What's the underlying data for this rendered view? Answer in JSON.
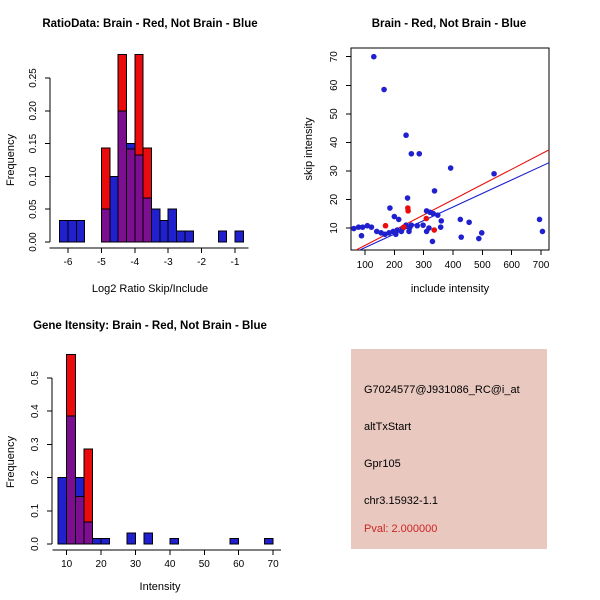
{
  "colors": {
    "red": "#ea0c0c",
    "blue": "#2020cf",
    "overlap_purple": "#7b0f8f",
    "panel_bg": "#e9c8c0",
    "pval_red": "#cd2424",
    "axis": "#000000"
  },
  "chart_data": [
    {
      "id": "ratio_hist",
      "type": "histogram-overlay",
      "title": "RatioData: Brain - Red, Not Brain - Blue",
      "xlabel": "Log2 Ratio Skip/Include",
      "ylabel": "Frequency",
      "xticks": [
        -6,
        -5,
        -4,
        -3,
        -2,
        -1
      ],
      "yticks": [
        0,
        0.05,
        0.1,
        0.15,
        0.2,
        0.25
      ],
      "ytick_labels": [
        "0.00",
        "0.05",
        "0.10",
        "0.15",
        "0.20",
        "0.25"
      ],
      "xlim": [
        -6.55,
        -0.6
      ],
      "ylim": [
        0,
        0.287
      ],
      "bin_width": 0.25,
      "legend_note": "Brain - red, Not Brain - blue, overlap - purple",
      "red_bins": [
        {
          "x": -5.0,
          "h": 0.143
        },
        {
          "x": -4.5,
          "h": 0.286
        },
        {
          "x": -4.25,
          "h": 0.142
        },
        {
          "x": -4.0,
          "h": 0.286
        },
        {
          "x": -3.75,
          "h": 0.143
        }
      ],
      "blue_bins": [
        {
          "x": -6.25,
          "h": 0.033
        },
        {
          "x": -6.0,
          "h": 0.033
        },
        {
          "x": -5.75,
          "h": 0.033
        },
        {
          "x": -5.0,
          "h": 0.05
        },
        {
          "x": -4.75,
          "h": 0.1
        },
        {
          "x": -4.5,
          "h": 0.2
        },
        {
          "x": -4.25,
          "h": 0.15
        },
        {
          "x": -4.0,
          "h": 0.133
        },
        {
          "x": -3.75,
          "h": 0.067
        },
        {
          "x": -3.5,
          "h": 0.05
        },
        {
          "x": -3.25,
          "h": 0.033
        },
        {
          "x": -3.0,
          "h": 0.05
        },
        {
          "x": -2.75,
          "h": 0.017
        },
        {
          "x": -2.5,
          "h": 0.017
        },
        {
          "x": -1.5,
          "h": 0.017
        },
        {
          "x": -1.0,
          "h": 0.017
        }
      ]
    },
    {
      "id": "intensity_scatter",
      "type": "scatter",
      "title": "Brain - Red, Not Brain - Blue",
      "xlabel": "include intensity",
      "ylabel": "skip intensity",
      "xticks": [
        100,
        200,
        300,
        400,
        500,
        600,
        700
      ],
      "yticks": [
        10,
        20,
        30,
        40,
        50,
        60,
        70
      ],
      "xlim": [
        52,
        727
      ],
      "ylim": [
        2.3,
        73.1
      ],
      "blue_points": [
        [
          130,
          70
        ],
        [
          165,
          58.5
        ],
        [
          240,
          42.5
        ],
        [
          258,
          36
        ],
        [
          285,
          36
        ],
        [
          392,
          31
        ],
        [
          540,
          29
        ],
        [
          337,
          23
        ],
        [
          245,
          20.5
        ],
        [
          185,
          17
        ],
        [
          310,
          16
        ],
        [
          322,
          15.5
        ],
        [
          333,
          15
        ],
        [
          348,
          14.5
        ],
        [
          200,
          14
        ],
        [
          215,
          13
        ],
        [
          360,
          12.5
        ],
        [
          425,
          13
        ],
        [
          455,
          12
        ],
        [
          695,
          13
        ],
        [
          240,
          11
        ],
        [
          258,
          11
        ],
        [
          278,
          10.8
        ],
        [
          298,
          11
        ],
        [
          318,
          10
        ],
        [
          228,
          9.8
        ],
        [
          252,
          10
        ],
        [
          62,
          9.8
        ],
        [
          78,
          10.3
        ],
        [
          92,
          10.3
        ],
        [
          108,
          10.8
        ],
        [
          122,
          10.3
        ],
        [
          88,
          7.3
        ],
        [
          140,
          8.8
        ],
        [
          155,
          8.3
        ],
        [
          168,
          7.8
        ],
        [
          182,
          8.3
        ],
        [
          196,
          8.8
        ],
        [
          210,
          9.3
        ],
        [
          224,
          8.8
        ],
        [
          250,
          8.8
        ],
        [
          310,
          8.8
        ],
        [
          358,
          10.3
        ],
        [
          428,
          6.8
        ],
        [
          488,
          6.3
        ],
        [
          498,
          8.3
        ],
        [
          705,
          8.8
        ],
        [
          330,
          5.3
        ],
        [
          205,
          7.8
        ]
      ],
      "red_points": [
        [
          246,
          17
        ],
        [
          247,
          16
        ],
        [
          170,
          10.8
        ],
        [
          232,
          10.3
        ],
        [
          309,
          13.3
        ],
        [
          336,
          9.3
        ]
      ],
      "lines": [
        {
          "color_key": "red",
          "x1": 55,
          "y1": 1.5,
          "x2": 730,
          "y2": 37.5
        },
        {
          "color_key": "blue",
          "x1": 55,
          "y1": 1.0,
          "x2": 730,
          "y2": 33
        }
      ]
    },
    {
      "id": "gene_intensity_hist",
      "type": "histogram-overlay",
      "title": "Gene Itensity: Brain - Red, Not Brain - Blue",
      "xlabel": "Intensity",
      "ylabel": "Frequency",
      "xticks": [
        10,
        20,
        30,
        40,
        50,
        60,
        70
      ],
      "yticks": [
        0,
        0.1,
        0.2,
        0.3,
        0.4,
        0.5
      ],
      "ytick_labels": [
        "0.0",
        "0.1",
        "0.2",
        "0.3",
        "0.4",
        "0.5"
      ],
      "xlim": [
        5.8,
        72.3
      ],
      "ylim": [
        0,
        0.575
      ],
      "bin_width": 2.5,
      "red_bins": [
        {
          "x": 10,
          "h": 0.571
        },
        {
          "x": 12.5,
          "h": 0.143
        },
        {
          "x": 15,
          "h": 0.286
        }
      ],
      "blue_bins": [
        {
          "x": 7.5,
          "h": 0.2
        },
        {
          "x": 10,
          "h": 0.385
        },
        {
          "x": 12.5,
          "h": 0.2
        },
        {
          "x": 15,
          "h": 0.067
        },
        {
          "x": 17.5,
          "h": 0.017
        },
        {
          "x": 20,
          "h": 0.017
        },
        {
          "x": 27.5,
          "h": 0.033
        },
        {
          "x": 32.5,
          "h": 0.033
        },
        {
          "x": 40,
          "h": 0.017
        },
        {
          "x": 57.5,
          "h": 0.017
        },
        {
          "x": 67.5,
          "h": 0.017
        }
      ]
    }
  ],
  "info_panel": {
    "probe_id": "G7024577@J931086_RC@i_at",
    "event_type": "altTxStart",
    "gene_name": "Gpr105",
    "locus": "chr3.15932-1.1",
    "pval": "Pval: 2.000000"
  }
}
